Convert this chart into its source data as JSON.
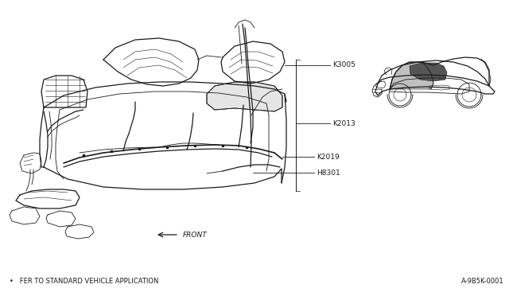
{
  "bg_color": "#ffffff",
  "text_color": "#1a1a1a",
  "part_labels": [
    "K3005",
    "K2013",
    "K2019",
    "H8301"
  ],
  "front_arrow_text": "FRONT",
  "footnote_text": "FER TO STANDARD VEHICLE APPLICATION",
  "diagram_code": "A-9B5K-0001",
  "font_size_labels": 6.5,
  "font_size_footnote": 6.0,
  "font_size_code": 6.0,
  "font_size_arrow": 6.5,
  "figsize": [
    6.4,
    3.72
  ],
  "dpi": 100
}
